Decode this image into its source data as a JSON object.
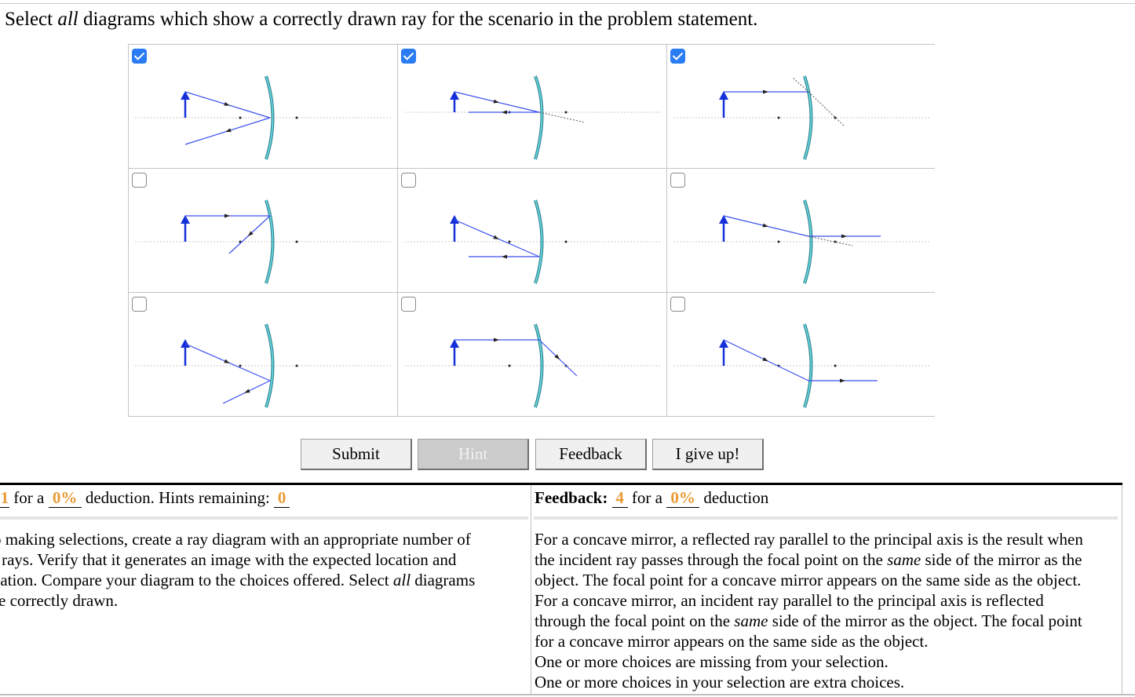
{
  "question": {
    "prefix": "Select ",
    "emphasis": "all",
    "suffix": " diagrams which show a correctly drawn ray for the scenario in the problem statement."
  },
  "choices": [
    {
      "checked": true
    },
    {
      "checked": true
    },
    {
      "checked": true
    },
    {
      "checked": false
    },
    {
      "checked": false
    },
    {
      "checked": false
    },
    {
      "checked": false
    },
    {
      "checked": false
    },
    {
      "checked": false
    }
  ],
  "buttons": {
    "submit": "Submit",
    "hint": "Hint",
    "feedback": "Feedback",
    "giveup": "I give up!"
  },
  "hint_bar": {
    "count": "1",
    "for_a": "for a",
    "percent": "0%",
    "deduction": "deduction. Hints remaining:",
    "remaining": "0"
  },
  "feedback_bar": {
    "label": "Feedback:",
    "count": "4",
    "for_a": "for a",
    "percent": "0%",
    "deduction": "deduction"
  },
  "hint_text": {
    "t1": "o making selections, create a ray diagram with an appropriate number of",
    "t2": "l rays. Verify that it generates an image with the expected location and",
    "t3": "cation. Compare your diagram to the choices offered. Select ",
    "t3_em": "all",
    "t3_end": " diagrams",
    "t4": "re correctly drawn."
  },
  "feedback_text": {
    "l1": "For a concave mirror, a reflected ray parallel to the principal axis is the result when",
    "l2a": "the incident ray passes through the focal point on the ",
    "l2em": "same",
    "l2b": " side of the mirror as the",
    "l3": "object. The focal point for a concave mirror appears on the same side as the object.",
    "l4": "For a concave mirror, an incident ray parallel to the principal axis is reflected",
    "l5a": "through the focal point on the ",
    "l5em": "same",
    "l5b": " side of the mirror as the object. The focal point",
    "l6": "for a concave mirror appears on the same side as the object.",
    "l7": "One or more choices are missing from your selection.",
    "l8": "One or more choices in your selection are extra choices."
  }
}
